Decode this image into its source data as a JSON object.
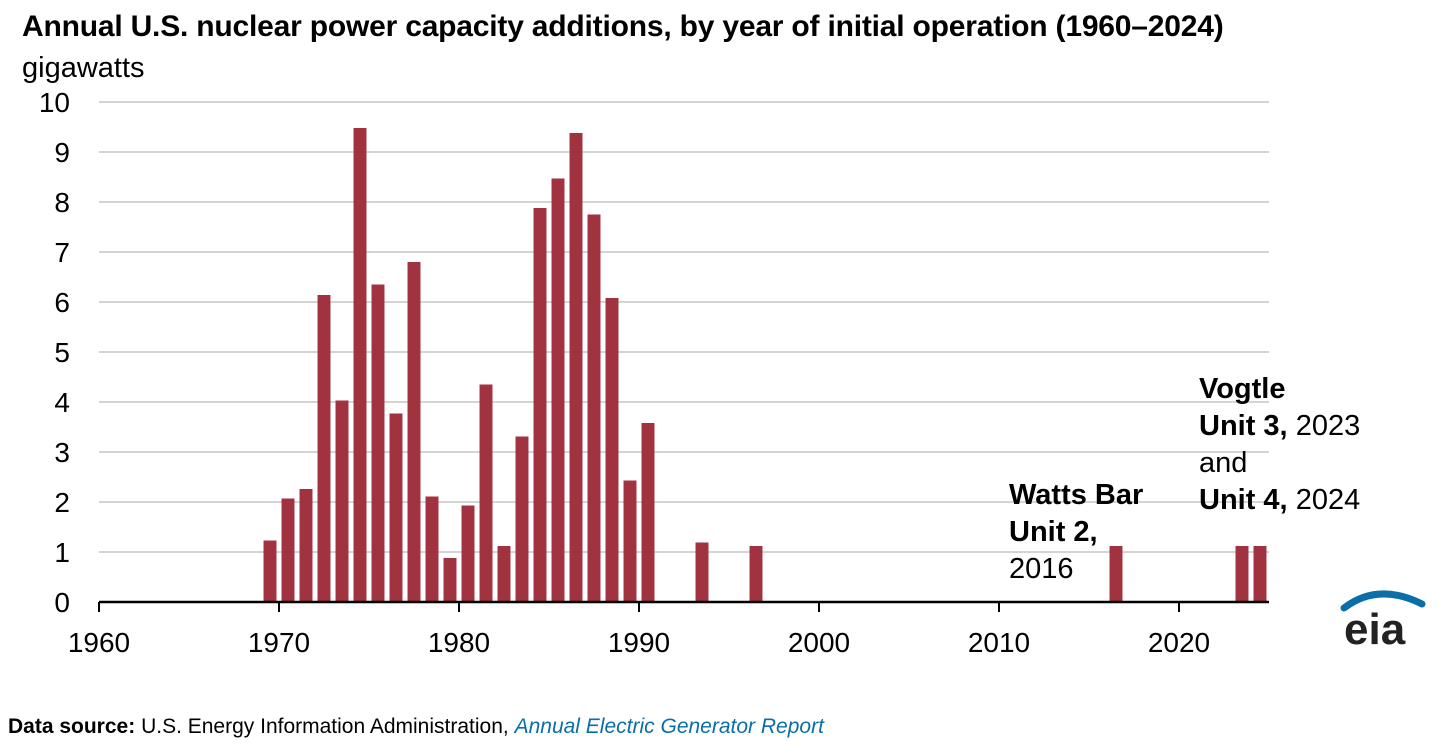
{
  "chart_data": {
    "type": "bar",
    "title": "Annual U.S. nuclear power capacity additions, by year of initial operation (1960–2024)",
    "ylabel": "gigawatts",
    "xlim": [
      1960,
      2025
    ],
    "ylim": [
      0,
      10
    ],
    "x_ticks": [
      "1960",
      "1970",
      "1980",
      "1990",
      "2000",
      "2010",
      "2020"
    ],
    "y_ticks": [
      "0",
      "1",
      "2",
      "3",
      "4",
      "5",
      "6",
      "7",
      "8",
      "9",
      "10"
    ],
    "grid": true,
    "color": "#a13340",
    "x": [
      1969,
      1970,
      1971,
      1972,
      1973,
      1974,
      1975,
      1976,
      1977,
      1978,
      1979,
      1980,
      1981,
      1982,
      1983,
      1984,
      1985,
      1986,
      1987,
      1988,
      1989,
      1990,
      1993,
      1996,
      2016,
      2023,
      2024
    ],
    "values": [
      1.23,
      2.07,
      2.26,
      6.14,
      4.03,
      9.48,
      6.35,
      3.77,
      6.8,
      2.11,
      0.88,
      1.93,
      4.35,
      1.12,
      3.31,
      7.88,
      8.47,
      9.38,
      7.75,
      6.08,
      2.43,
      3.58,
      1.19,
      1.12,
      1.12,
      1.12,
      1.12
    ],
    "annotations": {
      "watts_bar": {
        "line1": "Watts Bar",
        "line2": "Unit 2,",
        "line3": "2016"
      },
      "vogtle": {
        "line1": "Vogtle",
        "line2_bold": "Unit 3,",
        "line2_rest": "2023",
        "line3": "and",
        "line4_bold": "Unit 4,",
        "line4_rest": "2024"
      }
    }
  },
  "footer": {
    "source_label": "Data source:",
    "source_text": "U.S. Energy Information Administration,",
    "source_link": "Annual Electric Generator Report"
  },
  "logo": {
    "text": "eia",
    "color": "#0a6ea8"
  }
}
